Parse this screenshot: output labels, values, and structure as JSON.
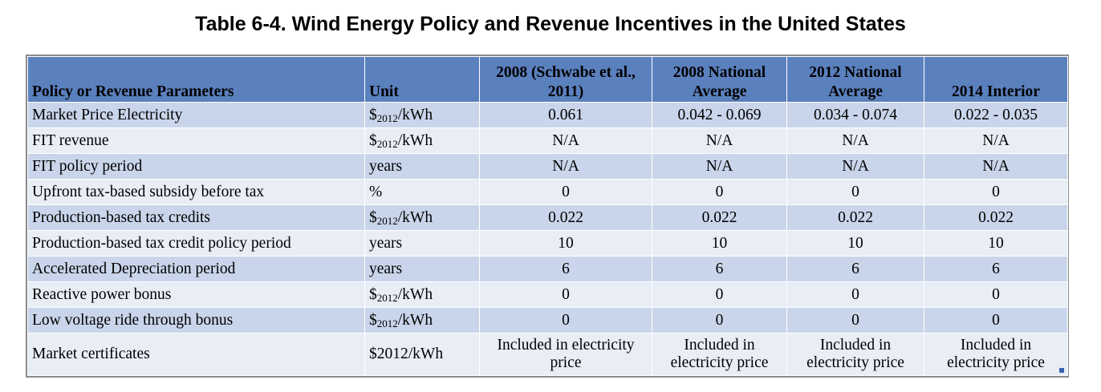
{
  "title": "Table 6-4. Wind Energy Policy and Revenue Incentives in the United States",
  "headers": [
    "Policy or Revenue Parameters",
    "Unit",
    "2008 (Schwabe et al., 2011)",
    "2008 National Average",
    "2012 National Average",
    "2014 Interior"
  ],
  "unit_parts": {
    "dollar": "$",
    "year": "2012",
    "per": "/kWh"
  },
  "rows": [
    {
      "param": "Market Price Electricity",
      "unit": "$2012/kWh",
      "unit_sub": true,
      "v1": "0.061",
      "v2": "0.042 - 0.069",
      "v3": "0.034 - 0.074",
      "v4": "0.022 - 0.035"
    },
    {
      "param": "FIT revenue",
      "unit": "$2012/kWh",
      "unit_sub": true,
      "v1": "N/A",
      "v2": "N/A",
      "v3": "N/A",
      "v4": "N/A"
    },
    {
      "param": "FIT policy period",
      "unit": "years",
      "unit_sub": false,
      "v1": "N/A",
      "v2": "N/A",
      "v3": "N/A",
      "v4": "N/A"
    },
    {
      "param": "Upfront tax-based subsidy before tax",
      "unit": "%",
      "unit_sub": false,
      "v1": "0",
      "v2": "0",
      "v3": "0",
      "v4": "0"
    },
    {
      "param": "Production-based tax credits",
      "unit": "$2012/kWh",
      "unit_sub": true,
      "v1": "0.022",
      "v2": "0.022",
      "v3": "0.022",
      "v4": "0.022"
    },
    {
      "param": "Production-based tax credit policy period",
      "unit": "years",
      "unit_sub": false,
      "v1": "10",
      "v2": "10",
      "v3": "10",
      "v4": "10"
    },
    {
      "param": "Accelerated Depreciation period",
      "unit": "years",
      "unit_sub": false,
      "v1": "6",
      "v2": "6",
      "v3": "6",
      "v4": "6"
    },
    {
      "param": "Reactive power bonus",
      "unit": "$2012/kWh",
      "unit_sub": true,
      "v1": "0",
      "v2": "0",
      "v3": "0",
      "v4": "0"
    },
    {
      "param": "Low voltage ride through bonus",
      "unit": "$2012/kWh",
      "unit_sub": true,
      "v1": "0",
      "v2": "0",
      "v3": "0",
      "v4": "0"
    },
    {
      "param": "Market certificates",
      "unit": "$2012/kWh",
      "unit_sub": false,
      "v1": "Included in electricity price",
      "v2": "Included in electricity price",
      "v3": "Included in electricity price",
      "v4": "Included in electricity price"
    }
  ],
  "colors": {
    "header_bg": "#5b80be",
    "row_dark": "#c9d5ea",
    "row_light": "#e8edf6"
  }
}
